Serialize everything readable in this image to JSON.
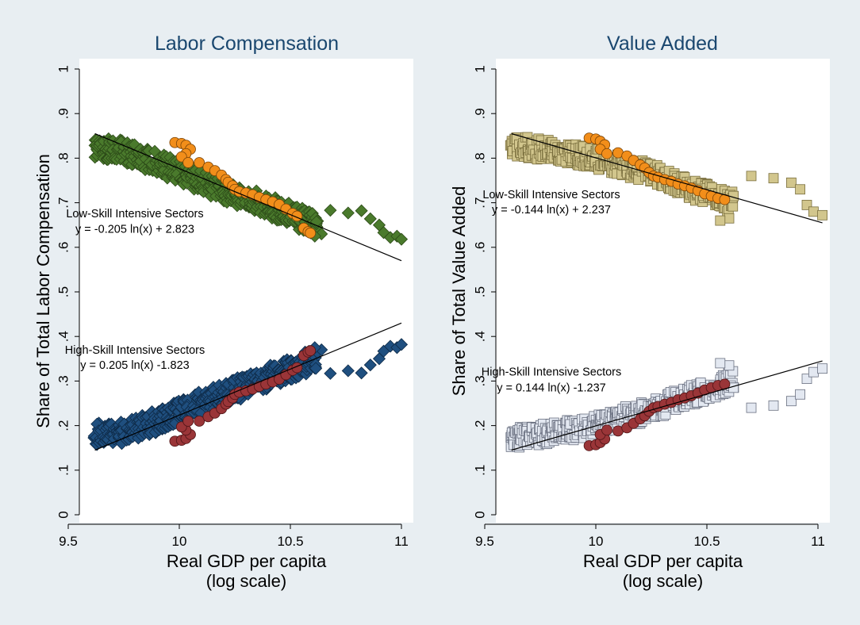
{
  "chart_data": [
    {
      "type": "scatter",
      "title": "Labor Compensation",
      "xlabel": "Real GDP per capita",
      "xlabel_line2": "(log scale)",
      "ylabel": "Share of Total Labor Compensation",
      "xlim": [
        9.55,
        11.05
      ],
      "ylim": [
        0,
        1
      ],
      "xticks": [
        {
          "value": 9.5,
          "label": "9.5"
        },
        {
          "value": 10,
          "label": "10"
        },
        {
          "value": 10.5,
          "label": "10.5"
        },
        {
          "value": 11,
          "label": "11"
        }
      ],
      "yticks": [
        {
          "value": 0,
          "label": "0"
        },
        {
          "value": 0.1,
          "label": ".1"
        },
        {
          "value": 0.2,
          "label": ".2"
        },
        {
          "value": 0.3,
          "label": ".3"
        },
        {
          "value": 0.4,
          "label": ".4"
        },
        {
          "value": 0.5,
          "label": ".5"
        },
        {
          "value": 0.6,
          "label": ".6"
        },
        {
          "value": 0.7,
          "label": ".7"
        },
        {
          "value": 0.8,
          "label": ".8"
        },
        {
          "value": 0.9,
          "label": ".9"
        },
        {
          "value": 1,
          "label": "1"
        }
      ],
      "grid": false,
      "annotations": [
        {
          "name": "low-skill-label",
          "text": "Low-Skill Intensive Sectors",
          "x": 9.8,
          "y": 0.667
        },
        {
          "name": "low-skill-equation",
          "text": "y = -0.205 ln(x) + 2.823",
          "x": 9.8,
          "y": 0.633
        },
        {
          "name": "high-skill-label",
          "text": "High-Skill Intensive Sectors",
          "x": 9.8,
          "y": 0.361
        },
        {
          "name": "high-skill-equation",
          "text": "y = 0.205 ln(x) -1.823",
          "x": 9.8,
          "y": 0.327
        }
      ],
      "series": [
        {
          "marker": "diamond",
          "color": "#4a7a2c",
          "edge": "#2c4a18",
          "size": 7.5,
          "band": [
            [
              9.62,
              0.823
            ],
            [
              9.75,
              0.815
            ],
            [
              9.9,
              0.789
            ],
            [
              10.0,
              0.77
            ],
            [
              10.1,
              0.748
            ],
            [
              10.25,
              0.72
            ],
            [
              10.4,
              0.692
            ],
            [
              10.5,
              0.674
            ],
            [
              10.62,
              0.648
            ]
          ],
          "width": 0.025,
          "step": 0.0075,
          "seed": 11,
          "extra": [
            [
              10.68,
              0.683
            ],
            [
              10.76,
              0.677
            ],
            [
              10.82,
              0.682
            ],
            [
              10.86,
              0.664
            ],
            [
              10.9,
              0.65
            ],
            [
              10.92,
              0.633
            ],
            [
              10.95,
              0.622
            ],
            [
              10.98,
              0.625
            ],
            [
              11.0,
              0.618
            ],
            [
              10.64,
              0.63
            ],
            [
              10.61,
              0.625
            ]
          ]
        },
        {
          "marker": "circle",
          "color": "#f28e1a",
          "edge": "#7a4408",
          "size": 6.5,
          "points": [
            [
              9.98,
              0.835
            ],
            [
              10.01,
              0.833
            ],
            [
              10.03,
              0.829
            ],
            [
              10.05,
              0.82
            ],
            [
              10.03,
              0.81
            ],
            [
              10.01,
              0.803
            ],
            [
              10.04,
              0.79
            ],
            [
              10.09,
              0.79
            ],
            [
              10.13,
              0.78
            ],
            [
              10.16,
              0.772
            ],
            [
              10.19,
              0.762
            ],
            [
              10.21,
              0.752
            ],
            [
              10.22,
              0.746
            ],
            [
              10.24,
              0.738
            ],
            [
              10.25,
              0.73
            ],
            [
              10.27,
              0.725
            ],
            [
              10.3,
              0.722
            ],
            [
              10.33,
              0.718
            ],
            [
              10.36,
              0.712
            ],
            [
              10.39,
              0.707
            ],
            [
              10.42,
              0.702
            ],
            [
              10.45,
              0.696
            ],
            [
              10.48,
              0.686
            ],
            [
              10.51,
              0.676
            ],
            [
              10.53,
              0.67
            ],
            [
              10.56,
              0.643
            ],
            [
              10.58,
              0.635
            ],
            [
              10.59,
              0.632
            ]
          ]
        },
        {
          "marker": "diamond",
          "color": "#1f4f7f",
          "edge": "#0e2a47",
          "size": 7.5,
          "band": [
            [
              9.62,
              0.182
            ],
            [
              9.75,
              0.185
            ],
            [
              9.9,
              0.21
            ],
            [
              10.0,
              0.23
            ],
            [
              10.1,
              0.252
            ],
            [
              10.25,
              0.28
            ],
            [
              10.4,
              0.308
            ],
            [
              10.5,
              0.326
            ],
            [
              10.62,
              0.352
            ]
          ],
          "width": 0.025,
          "step": 0.0075,
          "seed": 29,
          "extra": [
            [
              10.68,
              0.317
            ],
            [
              10.76,
              0.323
            ],
            [
              10.82,
              0.318
            ],
            [
              10.86,
              0.336
            ],
            [
              10.9,
              0.35
            ],
            [
              10.92,
              0.367
            ],
            [
              10.95,
              0.378
            ],
            [
              10.98,
              0.375
            ],
            [
              11.0,
              0.382
            ],
            [
              10.64,
              0.37
            ],
            [
              10.61,
              0.375
            ]
          ]
        },
        {
          "marker": "circle",
          "color": "#9a3538",
          "edge": "#4f1416",
          "size": 6.5,
          "points": [
            [
              9.98,
              0.165
            ],
            [
              10.01,
              0.167
            ],
            [
              10.03,
              0.171
            ],
            [
              10.05,
              0.18
            ],
            [
              10.03,
              0.19
            ],
            [
              10.01,
              0.197
            ],
            [
              10.04,
              0.21
            ],
            [
              10.09,
              0.21
            ],
            [
              10.13,
              0.22
            ],
            [
              10.16,
              0.228
            ],
            [
              10.19,
              0.238
            ],
            [
              10.21,
              0.248
            ],
            [
              10.22,
              0.254
            ],
            [
              10.24,
              0.262
            ],
            [
              10.25,
              0.27
            ],
            [
              10.27,
              0.275
            ],
            [
              10.3,
              0.278
            ],
            [
              10.33,
              0.282
            ],
            [
              10.36,
              0.288
            ],
            [
              10.39,
              0.293
            ],
            [
              10.42,
              0.298
            ],
            [
              10.45,
              0.304
            ],
            [
              10.48,
              0.314
            ],
            [
              10.51,
              0.324
            ],
            [
              10.53,
              0.33
            ],
            [
              10.56,
              0.357
            ],
            [
              10.58,
              0.365
            ],
            [
              10.59,
              0.368
            ]
          ]
        }
      ],
      "fit_lines": [
        {
          "name": "low-skill-fit",
          "x": [
            9.62,
            11.0
          ],
          "y": [
            0.855,
            0.57
          ]
        },
        {
          "name": "high-skill-fit",
          "x": [
            9.62,
            11.0
          ],
          "y": [
            0.145,
            0.43
          ]
        }
      ]
    },
    {
      "type": "scatter",
      "title": "Value Added",
      "xlabel": "Real GDP per capita",
      "xlabel_line2": "(log scale)",
      "ylabel": "Share of Total Value Added",
      "xlim": [
        9.55,
        11.05
      ],
      "ylim": [
        0,
        1
      ],
      "xticks": [
        {
          "value": 9.5,
          "label": "9.5"
        },
        {
          "value": 10,
          "label": "10"
        },
        {
          "value": 10.5,
          "label": "10.5"
        },
        {
          "value": 11,
          "label": "11"
        }
      ],
      "yticks": [
        {
          "value": 0,
          "label": "0"
        },
        {
          "value": 0.1,
          "label": ".1"
        },
        {
          "value": 0.2,
          "label": ".2"
        },
        {
          "value": 0.3,
          "label": ".3"
        },
        {
          "value": 0.4,
          "label": ".4"
        },
        {
          "value": 0.5,
          "label": ".5"
        },
        {
          "value": 0.6,
          "label": ".6"
        },
        {
          "value": 0.7,
          "label": ".7"
        },
        {
          "value": 0.8,
          "label": ".8"
        },
        {
          "value": 0.9,
          "label": ".9"
        },
        {
          "value": 1,
          "label": "1"
        }
      ],
      "grid": false,
      "annotations": [
        {
          "name": "low-skill-label",
          "text": "Low-Skill Intensive Sectors",
          "x": 9.8,
          "y": 0.71
        },
        {
          "name": "low-skill-equation",
          "text": "y = -0.144 ln(x) + 2.237",
          "x": 9.8,
          "y": 0.676
        },
        {
          "name": "high-skill-label",
          "text": "High-Skill Intensive Sectors",
          "x": 9.8,
          "y": 0.312
        },
        {
          "name": "high-skill-equation",
          "text": "y = 0.144 ln(x) -1.237",
          "x": 9.8,
          "y": 0.277
        }
      ],
      "series": [
        {
          "marker": "square",
          "color": "#d2c68d",
          "edge": "#7a6f3e",
          "size": 6,
          "band": [
            [
              9.62,
              0.83
            ],
            [
              9.75,
              0.82
            ],
            [
              9.9,
              0.81
            ],
            [
              10.0,
              0.8
            ],
            [
              10.1,
              0.785
            ],
            [
              10.25,
              0.765
            ],
            [
              10.4,
              0.735
            ],
            [
              10.5,
              0.72
            ],
            [
              10.62,
              0.7
            ]
          ],
          "width": 0.024,
          "step": 0.0075,
          "seed": 47,
          "extra": [
            [
              10.7,
              0.76
            ],
            [
              10.8,
              0.755
            ],
            [
              10.88,
              0.745
            ],
            [
              10.92,
              0.73
            ],
            [
              10.95,
              0.695
            ],
            [
              10.98,
              0.68
            ],
            [
              11.02,
              0.672
            ],
            [
              10.6,
              0.665
            ],
            [
              10.56,
              0.66
            ],
            [
              10.62,
              0.715
            ]
          ]
        },
        {
          "marker": "circle",
          "color": "#f28e1a",
          "edge": "#7a4408",
          "size": 6.5,
          "points": [
            [
              9.97,
              0.845
            ],
            [
              10.0,
              0.843
            ],
            [
              10.02,
              0.838
            ],
            [
              10.04,
              0.83
            ],
            [
              10.02,
              0.82
            ],
            [
              10.05,
              0.81
            ],
            [
              10.1,
              0.812
            ],
            [
              10.14,
              0.805
            ],
            [
              10.17,
              0.795
            ],
            [
              10.2,
              0.785
            ],
            [
              10.22,
              0.778
            ],
            [
              10.24,
              0.768
            ],
            [
              10.26,
              0.76
            ],
            [
              10.28,
              0.757
            ],
            [
              10.31,
              0.752
            ],
            [
              10.34,
              0.748
            ],
            [
              10.37,
              0.742
            ],
            [
              10.4,
              0.738
            ],
            [
              10.43,
              0.733
            ],
            [
              10.46,
              0.727
            ],
            [
              10.49,
              0.72
            ],
            [
              10.52,
              0.715
            ],
            [
              10.55,
              0.71
            ],
            [
              10.58,
              0.707
            ]
          ]
        },
        {
          "marker": "square",
          "color": "#e3e8f1",
          "edge": "#6a7080",
          "size": 6,
          "band": [
            [
              9.62,
              0.17
            ],
            [
              9.75,
              0.18
            ],
            [
              9.9,
              0.19
            ],
            [
              10.0,
              0.2
            ],
            [
              10.1,
              0.215
            ],
            [
              10.25,
              0.235
            ],
            [
              10.4,
              0.265
            ],
            [
              10.5,
              0.28
            ],
            [
              10.62,
              0.3
            ]
          ],
          "width": 0.024,
          "step": 0.0075,
          "seed": 83,
          "extra": [
            [
              10.7,
              0.24
            ],
            [
              10.8,
              0.245
            ],
            [
              10.88,
              0.255
            ],
            [
              10.92,
              0.27
            ],
            [
              10.95,
              0.305
            ],
            [
              10.98,
              0.32
            ],
            [
              11.02,
              0.328
            ],
            [
              10.6,
              0.335
            ],
            [
              10.56,
              0.34
            ],
            [
              10.62,
              0.285
            ]
          ]
        },
        {
          "marker": "circle",
          "color": "#9a3538",
          "edge": "#4f1416",
          "size": 6.5,
          "points": [
            [
              9.97,
              0.155
            ],
            [
              10.0,
              0.157
            ],
            [
              10.02,
              0.162
            ],
            [
              10.04,
              0.17
            ],
            [
              10.02,
              0.18
            ],
            [
              10.05,
              0.19
            ],
            [
              10.1,
              0.188
            ],
            [
              10.14,
              0.195
            ],
            [
              10.17,
              0.205
            ],
            [
              10.2,
              0.215
            ],
            [
              10.22,
              0.222
            ],
            [
              10.24,
              0.232
            ],
            [
              10.26,
              0.24
            ],
            [
              10.28,
              0.243
            ],
            [
              10.31,
              0.248
            ],
            [
              10.34,
              0.252
            ],
            [
              10.37,
              0.258
            ],
            [
              10.4,
              0.262
            ],
            [
              10.43,
              0.267
            ],
            [
              10.46,
              0.273
            ],
            [
              10.49,
              0.28
            ],
            [
              10.52,
              0.285
            ],
            [
              10.55,
              0.29
            ],
            [
              10.58,
              0.293
            ]
          ]
        }
      ],
      "fit_lines": [
        {
          "name": "low-skill-fit",
          "x": [
            9.62,
            11.02
          ],
          "y": [
            0.855,
            0.655
          ]
        },
        {
          "name": "high-skill-fit",
          "x": [
            9.62,
            11.02
          ],
          "y": [
            0.145,
            0.345
          ]
        }
      ]
    }
  ]
}
